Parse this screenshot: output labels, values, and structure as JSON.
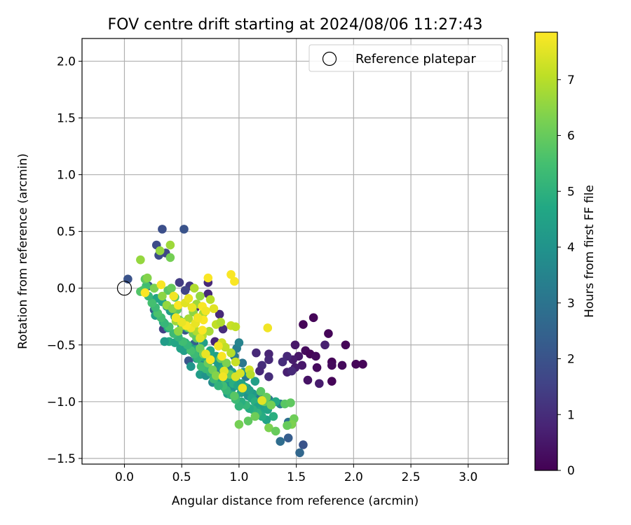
{
  "chart_data": {
    "type": "scatter",
    "title": "FOV centre drift starting at 2024/08/06 11:27:43",
    "xlabel": "Angular distance from reference (arcmin)",
    "ylabel": "Rotation from reference (arcmin)",
    "xlim": [
      -0.37,
      3.35
    ],
    "ylim": [
      -1.55,
      2.2
    ],
    "xticks": [
      "0.0",
      "0.5",
      "1.0",
      "1.5",
      "2.0",
      "2.5",
      "3.0"
    ],
    "xtick_values": [
      0,
      0.5,
      1,
      1.5,
      2,
      2.5,
      3
    ],
    "yticks": [
      "2.0",
      "1.5",
      "1.0",
      "0.5",
      "0.0",
      "−0.5",
      "−1.0",
      "−1.5"
    ],
    "ytick_values": [
      2,
      1.5,
      1,
      0.5,
      0,
      -0.5,
      -1,
      -1.5
    ],
    "grid": true,
    "legend": {
      "placement": "top-right",
      "entries": [
        "Reference platepar"
      ]
    },
    "reference_point": {
      "x": 0,
      "y": 0
    },
    "colorbar": {
      "label": "Hours from first FF file",
      "range": [
        0,
        7.85
      ],
      "ticks": [
        "0",
        "1",
        "2",
        "3",
        "4",
        "5",
        "6",
        "7"
      ],
      "tick_values": [
        0,
        1,
        2,
        3,
        4,
        5,
        6,
        7
      ],
      "colormap": "viridis"
    },
    "points": [
      [
        1.56,
        -0.32,
        0.1
      ],
      [
        1.65,
        -0.26,
        0.1
      ],
      [
        1.78,
        -0.4,
        0.1
      ],
      [
        1.93,
        -0.5,
        0.1
      ],
      [
        1.58,
        -0.55,
        0.2
      ],
      [
        1.62,
        -0.58,
        0.1
      ],
      [
        1.67,
        -0.6,
        0.2
      ],
      [
        1.81,
        -0.65,
        0.1
      ],
      [
        1.81,
        -0.68,
        0.2
      ],
      [
        1.9,
        -0.68,
        0.2
      ],
      [
        2.02,
        -0.67,
        0.1
      ],
      [
        2.08,
        -0.67,
        0.1
      ],
      [
        1.68,
        -0.7,
        0.2
      ],
      [
        1.81,
        -0.82,
        0.1
      ],
      [
        1.6,
        -0.81,
        0.4
      ],
      [
        1.7,
        -0.84,
        0.6
      ],
      [
        1.75,
        -0.5,
        0.7
      ],
      [
        1.49,
        -0.5,
        0.5
      ],
      [
        1.52,
        -0.6,
        0.5
      ],
      [
        1.47,
        -0.63,
        0.6
      ],
      [
        1.55,
        -0.68,
        0.5
      ],
      [
        1.49,
        -0.7,
        0.6
      ],
      [
        1.42,
        -0.74,
        0.7
      ],
      [
        1.46,
        -0.73,
        0.9
      ],
      [
        1.42,
        -0.6,
        0.9
      ],
      [
        1.38,
        -0.65,
        1.0
      ],
      [
        1.15,
        -0.57,
        0.9
      ],
      [
        1.26,
        -0.58,
        0.8
      ],
      [
        1.26,
        -0.63,
        0.9
      ],
      [
        1.2,
        -0.68,
        1.0
      ],
      [
        1.18,
        -0.73,
        0.9
      ],
      [
        1.26,
        -0.78,
        1.0
      ],
      [
        0.73,
        -0.05,
        0.9
      ],
      [
        0.62,
        -0.17,
        0.9
      ],
      [
        0.73,
        0.05,
        0.9
      ],
      [
        0.83,
        -0.23,
        0.9
      ],
      [
        0.86,
        -0.36,
        1.0
      ],
      [
        0.79,
        -0.47,
        0.8
      ],
      [
        0.57,
        0.02,
        1.3
      ],
      [
        0.48,
        0.05,
        1.4
      ],
      [
        0.53,
        -0.02,
        1.6
      ],
      [
        0.34,
        -0.36,
        1.5
      ],
      [
        0.28,
        0.38,
        1.8
      ],
      [
        0.3,
        0.29,
        1.8
      ],
      [
        0.33,
        0.52,
        1.9
      ],
      [
        0.52,
        0.52,
        2.0
      ],
      [
        0.36,
        0.31,
        1.7
      ],
      [
        0.03,
        0.08,
        2.0
      ],
      [
        0.21,
        0.02,
        2.0
      ],
      [
        0.26,
        -0.19,
        2.2
      ],
      [
        0.42,
        -0.2,
        2.3
      ],
      [
        0.53,
        -0.37,
        2.1
      ],
      [
        0.61,
        -0.49,
        2.4
      ],
      [
        0.56,
        -0.64,
        2.1
      ],
      [
        1.56,
        -1.38,
        2.0
      ],
      [
        1.53,
        -1.45,
        2.6
      ],
      [
        1.43,
        -1.32,
        2.3
      ],
      [
        1.36,
        -1.35,
        2.8
      ],
      [
        1.43,
        -1.18,
        2.9
      ],
      [
        1.36,
        -1.02,
        3.3
      ],
      [
        1.26,
        -0.98,
        3.0
      ],
      [
        1.18,
        -0.94,
        3.2
      ],
      [
        1.06,
        -0.78,
        3.1
      ],
      [
        1.03,
        -0.66,
        3.1
      ],
      [
        0.98,
        -0.53,
        3.3
      ],
      [
        0.96,
        -0.6,
        3.2
      ],
      [
        1.0,
        -0.48,
        3.5
      ],
      [
        0.91,
        -0.71,
        3.4
      ],
      [
        0.86,
        -0.78,
        3.6
      ],
      [
        0.81,
        -0.72,
        3.5
      ],
      [
        0.77,
        -0.83,
        3.7
      ],
      [
        0.73,
        -0.64,
        3.4
      ],
      [
        0.68,
        -0.66,
        3.6
      ],
      [
        0.63,
        -0.62,
        3.8
      ],
      [
        0.6,
        -0.55,
        4.0
      ],
      [
        0.58,
        -0.69,
        4.1
      ],
      [
        0.66,
        -0.76,
        4.3
      ],
      [
        0.71,
        -0.77,
        4.0
      ],
      [
        0.87,
        -0.87,
        4.2
      ],
      [
        0.9,
        -0.93,
        4.4
      ],
      [
        0.94,
        -0.88,
        4.1
      ],
      [
        0.97,
        -0.97,
        4.3
      ],
      [
        1.02,
        -0.92,
        4.5
      ],
      [
        1.08,
        -0.95,
        4.0
      ],
      [
        1.12,
        -0.93,
        4.2
      ],
      [
        1.07,
        -0.88,
        3.9
      ],
      [
        1.14,
        -0.82,
        4.4
      ],
      [
        1.04,
        -0.74,
        4.0
      ],
      [
        0.97,
        -0.8,
        3.8
      ],
      [
        0.9,
        -0.83,
        4.1
      ],
      [
        0.85,
        -0.7,
        4.3
      ],
      [
        0.8,
        -0.6,
        4.5
      ],
      [
        0.75,
        -0.55,
        4.6
      ],
      [
        0.69,
        -0.48,
        4.4
      ],
      [
        0.64,
        -0.44,
        4.2
      ],
      [
        0.6,
        -0.39,
        4.5
      ],
      [
        0.55,
        -0.35,
        4.7
      ],
      [
        0.5,
        -0.33,
        4.8
      ],
      [
        0.47,
        -0.29,
        4.5
      ],
      [
        0.44,
        -0.25,
        4.3
      ],
      [
        0.4,
        -0.2,
        4.4
      ],
      [
        0.37,
        -0.16,
        4.2
      ],
      [
        0.33,
        -0.12,
        4.5
      ],
      [
        0.28,
        -0.09,
        4.6
      ],
      [
        0.27,
        -0.24,
        4.4
      ],
      [
        0.34,
        -0.3,
        4.5
      ],
      [
        0.38,
        -0.35,
        4.7
      ],
      [
        0.39,
        -0.47,
        4.8
      ],
      [
        0.35,
        -0.47,
        4.3
      ],
      [
        0.44,
        -0.48,
        4.6
      ],
      [
        0.49,
        -0.53,
        4.5
      ],
      [
        0.52,
        -0.55,
        4.4
      ],
      [
        0.53,
        -0.48,
        4.8
      ],
      [
        0.57,
        -0.52,
        4.3
      ],
      [
        0.62,
        -0.54,
        4.6
      ],
      [
        0.65,
        -0.56,
        4.4
      ],
      [
        0.66,
        -0.58,
        4.7
      ],
      [
        0.7,
        -0.61,
        4.9
      ],
      [
        0.74,
        -0.62,
        4.4
      ],
      [
        0.78,
        -0.63,
        4.5
      ],
      [
        0.82,
        -0.67,
        4.3
      ],
      [
        0.86,
        -0.71,
        4.6
      ],
      [
        0.87,
        -0.76,
        4.4
      ],
      [
        0.83,
        -0.82,
        4.6
      ],
      [
        0.9,
        -0.79,
        4.8
      ],
      [
        0.94,
        -0.74,
        4.3
      ],
      [
        0.95,
        -0.84,
        4.9
      ],
      [
        0.99,
        -0.86,
        4.6
      ],
      [
        1.02,
        -0.84,
        4.5
      ],
      [
        1.05,
        -0.87,
        4.8
      ],
      [
        1.09,
        -0.9,
        4.4
      ],
      [
        1.11,
        -0.97,
        4.6
      ],
      [
        1.14,
        -1.0,
        4.9
      ],
      [
        1.16,
        -1.05,
        4.5
      ],
      [
        1.19,
        -1.08,
        4.7
      ],
      [
        1.22,
        -1.04,
        4.4
      ],
      [
        1.25,
        -1.07,
        4.6
      ],
      [
        1.28,
        -1.02,
        5.0
      ],
      [
        1.32,
        -1.0,
        4.7
      ],
      [
        1.3,
        -1.13,
        4.9
      ],
      [
        1.24,
        -1.16,
        4.5
      ],
      [
        1.2,
        -1.13,
        4.8
      ],
      [
        1.16,
        -1.1,
        5.1
      ],
      [
        1.12,
        -1.07,
        5.0
      ],
      [
        1.09,
        -1.06,
        4.8
      ],
      [
        1.06,
        -1.03,
        5.2
      ],
      [
        1.02,
        -1.0,
        4.9
      ],
      [
        1.0,
        -1.04,
        5.1
      ],
      [
        0.97,
        -0.98,
        5.3
      ],
      [
        0.93,
        -0.94,
        5.0
      ],
      [
        0.89,
        -0.9,
        5.2
      ],
      [
        0.86,
        -0.86,
        5.4
      ],
      [
        0.82,
        -0.86,
        5.1
      ],
      [
        0.78,
        -0.8,
        5.3
      ],
      [
        0.75,
        -0.74,
        5.1
      ],
      [
        0.71,
        -0.71,
        5.3
      ],
      [
        0.67,
        -0.69,
        5.4
      ],
      [
        0.64,
        -0.62,
        5.1
      ],
      [
        0.61,
        -0.58,
        5.3
      ],
      [
        0.58,
        -0.55,
        5.5
      ],
      [
        0.55,
        -0.5,
        5.2
      ],
      [
        0.51,
        -0.47,
        5.4
      ],
      [
        0.47,
        -0.43,
        5.1
      ],
      [
        0.43,
        -0.4,
        5.3
      ],
      [
        0.39,
        -0.34,
        5.5
      ],
      [
        0.35,
        -0.31,
        5.2
      ],
      [
        0.32,
        -0.26,
        5.4
      ],
      [
        0.29,
        -0.22,
        5.6
      ],
      [
        0.27,
        -0.17,
        5.3
      ],
      [
        0.24,
        -0.13,
        5.5
      ],
      [
        0.21,
        -0.07,
        5.2
      ],
      [
        0.19,
        0.02,
        5.4
      ],
      [
        0.16,
        -0.02,
        5.6
      ],
      [
        0.14,
        -0.03,
        5.7
      ],
      [
        0.18,
        0.08,
        5.9
      ],
      [
        0.26,
        0.0,
        5.6
      ],
      [
        0.38,
        -0.02,
        5.8
      ],
      [
        0.41,
        0.0,
        6.0
      ],
      [
        0.44,
        -0.08,
        5.7
      ],
      [
        0.46,
        -0.19,
        5.9
      ],
      [
        0.48,
        -0.28,
        6.1
      ],
      [
        0.52,
        -0.3,
        5.8
      ],
      [
        0.56,
        -0.35,
        6.0
      ],
      [
        0.6,
        -0.4,
        6.2
      ],
      [
        0.63,
        -0.44,
        5.9
      ],
      [
        0.66,
        -0.53,
        6.1
      ],
      [
        0.69,
        -0.58,
        6.3
      ],
      [
        0.73,
        -0.66,
        6.0
      ],
      [
        0.77,
        -0.72,
        6.2
      ],
      [
        0.8,
        -0.77,
        6.4
      ],
      [
        0.84,
        -0.62,
        6.1
      ],
      [
        0.89,
        -0.66,
        6.3
      ],
      [
        0.92,
        -0.76,
        6.0
      ],
      [
        0.96,
        -0.95,
        5.8
      ],
      [
        1.0,
        -1.2,
        6.2
      ],
      [
        1.08,
        -1.17,
        5.9
      ],
      [
        1.14,
        -1.13,
        6.1
      ],
      [
        1.19,
        -0.91,
        5.8
      ],
      [
        1.22,
        -1.0,
        5.9
      ],
      [
        1.26,
        -1.23,
        6.3
      ],
      [
        1.32,
        -1.26,
        6.0
      ],
      [
        1.4,
        -1.02,
        5.8
      ],
      [
        1.45,
        -1.01,
        5.9
      ],
      [
        1.48,
        -1.15,
        6.1
      ],
      [
        1.46,
        -1.2,
        6.3
      ],
      [
        1.42,
        -1.21,
        6.0
      ],
      [
        1.28,
        -1.03,
        6.2
      ],
      [
        1.24,
        -0.96,
        6.0
      ],
      [
        0.4,
        0.38,
        6.7
      ],
      [
        0.31,
        0.33,
        6.6
      ],
      [
        0.4,
        0.27,
        6.2
      ],
      [
        0.14,
        0.25,
        6.6
      ],
      [
        0.2,
        0.09,
        6.4
      ],
      [
        0.26,
        0.0,
        6.3
      ],
      [
        0.33,
        -0.07,
        6.5
      ],
      [
        0.37,
        -0.15,
        6.6
      ],
      [
        0.42,
        -0.18,
        6.4
      ],
      [
        0.45,
        -0.29,
        6.7
      ],
      [
        0.47,
        -0.38,
        6.5
      ],
      [
        0.51,
        -0.33,
        6.6
      ],
      [
        0.56,
        -0.27,
        6.8
      ],
      [
        0.6,
        -0.21,
        6.5
      ],
      [
        0.63,
        -0.14,
        6.7
      ],
      [
        0.66,
        -0.07,
        6.6
      ],
      [
        0.61,
        0.0,
        6.9
      ],
      [
        0.75,
        -0.1,
        7.0
      ],
      [
        0.69,
        -0.22,
        6.8
      ],
      [
        0.63,
        -0.38,
        6.9
      ],
      [
        0.68,
        -0.42,
        7.0
      ],
      [
        0.74,
        -0.38,
        6.8
      ],
      [
        0.8,
        -0.32,
        7.1
      ],
      [
        0.84,
        -0.3,
        6.9
      ],
      [
        0.93,
        -0.57,
        7.0
      ],
      [
        0.93,
        -0.33,
        7.2
      ],
      [
        0.85,
        -0.48,
        7.3
      ],
      [
        0.88,
        -0.52,
        7.1
      ],
      [
        0.97,
        -0.65,
        7.2
      ],
      [
        1.01,
        -0.75,
        7.4
      ],
      [
        1.09,
        -0.72,
        7.3
      ],
      [
        1.1,
        -0.76,
        7.0
      ],
      [
        1.2,
        -0.99,
        7.5
      ],
      [
        1.03,
        -0.88,
        7.6
      ],
      [
        0.97,
        -0.78,
        7.4
      ],
      [
        0.87,
        -0.73,
        7.5
      ],
      [
        0.86,
        -0.78,
        7.7
      ],
      [
        0.75,
        -0.63,
        7.8
      ],
      [
        0.71,
        -0.58,
        7.6
      ],
      [
        0.66,
        -0.44,
        7.5
      ],
      [
        0.58,
        -0.35,
        7.7
      ],
      [
        0.54,
        -0.33,
        7.8
      ],
      [
        0.5,
        -0.3,
        7.6
      ],
      [
        0.45,
        -0.26,
        7.7
      ],
      [
        0.47,
        -0.15,
        7.8
      ],
      [
        0.53,
        -0.13,
        7.5
      ],
      [
        0.59,
        -0.17,
        7.6
      ],
      [
        0.68,
        -0.16,
        7.8
      ],
      [
        0.71,
        -0.2,
        7.7
      ],
      [
        0.69,
        -0.28,
        7.8
      ],
      [
        0.62,
        -0.31,
        7.6
      ],
      [
        0.64,
        -0.26,
        7.7
      ],
      [
        0.68,
        -0.37,
        7.8
      ],
      [
        0.73,
        0.09,
        7.8
      ],
      [
        0.93,
        0.12,
        7.8
      ],
      [
        0.96,
        0.06,
        7.8
      ],
      [
        0.32,
        0.03,
        7.8
      ],
      [
        0.18,
        -0.04,
        7.8
      ],
      [
        0.43,
        -0.07,
        7.7
      ],
      [
        0.56,
        -0.09,
        7.6
      ],
      [
        0.78,
        -0.18,
        7.5
      ],
      [
        1.25,
        -0.35,
        7.7
      ],
      [
        0.97,
        -0.34,
        7.1
      ],
      [
        0.82,
        -0.51,
        7.7
      ],
      [
        0.85,
        -0.6,
        7.8
      ]
    ]
  }
}
